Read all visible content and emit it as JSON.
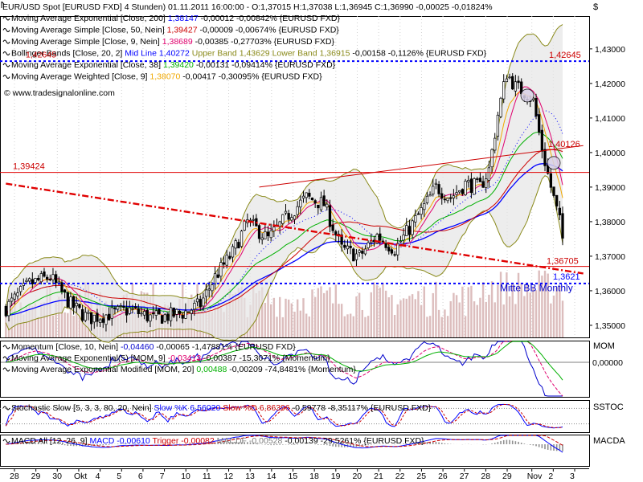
{
  "chart_data": {
    "type": "line",
    "instrument": "EUR/USD Spot [EURUSD FXD]",
    "timeframe": "4 Stunden",
    "header_text": "EUR/USD Spot [EURUSD FXD]  4 Stunden) 01.11.2011 16:00:00 - O:1,37015 H:1,37038 L:1,36945 C:1,36990 -0,00025 -0,01824%",
    "header_prefix": "EUR/USD Spot [EURUSD FXD]  4 Stunden) 01.11.2011 16:00:00 - O:1,37015 H:1,37038 L:1,36945 C:1,36990",
    "header_change": "-0,00025 -0,01824%",
    "currency_label": "$",
    "watermark": "www.tradesignalonline.com",
    "colors": {
      "candle": "#000000",
      "volume": "#dcbdbd",
      "ma200": "#0000ff",
      "ma50": "#cc0000",
      "ma9": "#e0006e",
      "bb_mid": "#0000ff",
      "bb_upper": "#8a8a1a",
      "bb_lower": "#8a8a1a",
      "ema38": "#00b000",
      "wma9": "#f0a800",
      "trend_red": "#e00000",
      "support_blue": "#0000ff",
      "momentum": "#0000cc",
      "stoch_k": "#0000ff",
      "stoch_d": "#cc0000",
      "macd": "#0000ff",
      "macd_trigger": "#cc0000",
      "macd_hist": "#909090"
    },
    "price_legend": [
      {
        "icon": "line-icon",
        "text": "Moving Average Exponential [Close, 200]",
        "value": "1,38147",
        "value_color": "#0000ff",
        "tail": "-0,00012 -0,00842% {EURUSD FXD}"
      },
      {
        "icon": "line-icon",
        "text": "Moving Average Simple [Close, 50, Nein]",
        "value": "1,39427",
        "value_color": "#cc0000",
        "tail": "-0,00009 -0,00674% {EURUSD FXD}"
      },
      {
        "icon": "line-icon",
        "text": "Moving Average Simple [Close, 9, Nein]",
        "value": "1,38689",
        "value_color": "#e0006e",
        "tail": "-0,00385 -0,27703% {EURUSD FXD}"
      },
      {
        "icon": "line-icon",
        "text": "Bollinger Bands [Close, 20, 2]",
        "value": "Mid Line 1,40272",
        "value_color": "#0000ff",
        "value2": "Upper Band 1,43629",
        "value2_color": "#8a8a1a",
        "value3": "Lower Band 1,36915",
        "value3_color": "#8a8a1a",
        "tail": "-0,00158 -0,1126% {EURUSD FXD}"
      },
      {
        "icon": "line-icon",
        "text": "Moving Average Exponential [Close, 38]",
        "value": "1,39420",
        "value_color": "#00b000",
        "tail": "-0,00131 -0,09414% {EURUSD FXD}"
      },
      {
        "icon": "line-icon",
        "text": "Moving Average Weighted [Close, 9]",
        "value": "1,38070",
        "value_color": "#f0a800",
        "tail": "-0,00417 -0,30095% {EURUSD FXD}"
      }
    ],
    "overlap_label": "1,42645",
    "y_axis": {
      "ylim": [
        1.3465,
        1.4395
      ],
      "ticks": [
        "1,43000",
        "1,42000",
        "1,41000",
        "1,40000",
        "1,39000",
        "1,38000",
        "1,37000",
        "1,36000",
        "1,35000"
      ],
      "tick_values": [
        1.43,
        1.42,
        1.41,
        1.4,
        1.39,
        1.38,
        1.37,
        1.36,
        1.35
      ]
    },
    "x_axis": {
      "ticks": [
        "28",
        "29",
        "30",
        "Okt",
        "4",
        "5",
        "6",
        "7",
        "10",
        "11",
        "12",
        "13",
        "14",
        "15",
        "18",
        "19",
        "20",
        "21",
        "22",
        "25",
        "26",
        "27",
        "28",
        "29",
        "Nov",
        "2",
        "3"
      ]
    },
    "bar_count": 190,
    "price_path_anchors": [
      [
        0,
        1.355
      ],
      [
        8,
        1.362
      ],
      [
        15,
        1.364
      ],
      [
        22,
        1.356
      ],
      [
        28,
        1.352
      ],
      [
        34,
        1.353
      ],
      [
        42,
        1.3545
      ],
      [
        50,
        1.352
      ],
      [
        60,
        1.3535
      ],
      [
        66,
        1.356
      ],
      [
        71,
        1.364
      ],
      [
        77,
        1.371
      ],
      [
        82,
        1.38
      ],
      [
        89,
        1.375
      ],
      [
        96,
        1.382
      ],
      [
        102,
        1.387
      ],
      [
        108,
        1.385
      ],
      [
        114,
        1.372
      ],
      [
        120,
        1.37
      ],
      [
        126,
        1.376
      ],
      [
        132,
        1.372
      ],
      [
        137,
        1.378
      ],
      [
        141,
        1.383
      ],
      [
        146,
        1.39
      ],
      [
        151,
        1.387
      ],
      [
        156,
        1.391
      ],
      [
        161,
        1.39
      ],
      [
        164,
        1.395
      ],
      [
        167,
        1.411
      ],
      [
        170,
        1.423
      ],
      [
        173,
        1.419
      ],
      [
        177,
        1.417
      ],
      [
        179,
        1.415
      ],
      [
        182,
        1.401
      ],
      [
        185,
        1.39
      ],
      [
        188,
        1.38
      ],
      [
        190,
        1.37
      ]
    ],
    "fixed_lines": [
      {
        "name": "resistance-1-42645",
        "price": 1.42645,
        "color": "#0000ff",
        "style": "dotted",
        "label": "1,42645",
        "label_color": "#cc0000"
      },
      {
        "name": "level-1-39424",
        "price": 1.39424,
        "color": "#e00000",
        "style": "solid",
        "label": "1,39424",
        "label_color": "#cc0000"
      },
      {
        "name": "level-1-36705",
        "price": 1.36705,
        "color": "#e00000",
        "style": "solid",
        "label": "1,36705",
        "label_color": "#cc0000"
      },
      {
        "name": "support-1-3621",
        "price": 1.3621,
        "color": "#0000ff",
        "style": "dotted",
        "label": "1,3621",
        "label_color": "#0000ff"
      }
    ],
    "trend_lines": [
      {
        "name": "downtrend-line",
        "from": [
          0,
          1.391
        ],
        "to": [
          196,
          1.365
        ],
        "color": "#e00000",
        "style": "dashdot"
      },
      {
        "name": "upper-channel-line",
        "from": [
          86,
          1.39
        ],
        "to": [
          196,
          1.402
        ],
        "color": "#cc0000",
        "style": "solid"
      }
    ],
    "annotations": [
      {
        "name": "label-1-40126",
        "text": "1,40126",
        "price": 1.4025,
        "bar": 187,
        "color": "#cc0000"
      },
      {
        "name": "label-mitte-bb",
        "text": "Mitte BB Monthly",
        "price": 1.36,
        "bar": 170,
        "color": "#0000cc"
      }
    ],
    "indicators": {
      "momentum": {
        "axis_label": "MOM",
        "tick": "0,00000",
        "legend": [
          {
            "text": "Momentum [Close, 10, Nein]",
            "value": "-0,04460",
            "value_color": "#0000cc",
            "tail": "-0,00065 -1,47881% {EURUSD FXD}"
          },
          {
            "text": "Moving Average Exponential(5) [MOM, 9]",
            "value": "-0,03413",
            "value_color": "#e0006e",
            "tail": "-0,00387 -15,3071% {Momentum}"
          },
          {
            "text": "Moving Average Exponential Modified [MOM, 20]",
            "value": "0,00488",
            "value_color": "#00b000",
            "tail": "-0,00209 -74,8481% {Momentum}"
          }
        ]
      },
      "stochastic": {
        "axis_label": "SSTOC",
        "legend": [
          {
            "text": "Stochastic Slow [5, 3, 3, 80, 20, Nein]",
            "value": "Slow %K 6,56020",
            "value_color": "#0000ff",
            "value2": "Slow %D 6,86396",
            "value2_color": "#cc0000",
            "tail": "-0,59778 -8,35117% {EURUSD FXD}"
          }
        ]
      },
      "macd": {
        "axis_label": "MACDA",
        "legend": [
          {
            "text": "MACD All [12, 26, 9]",
            "value": "MACD -0,00610",
            "value_color": "#0000ff",
            "value2": "Trigger -0,00082",
            "value2_color": "#cc0000",
            "value3": "MACDF -0,00528",
            "value3_color": "#808080",
            "tail": "-0,00139 -29,5261% {EURUSD FXD}"
          }
        ]
      }
    }
  }
}
